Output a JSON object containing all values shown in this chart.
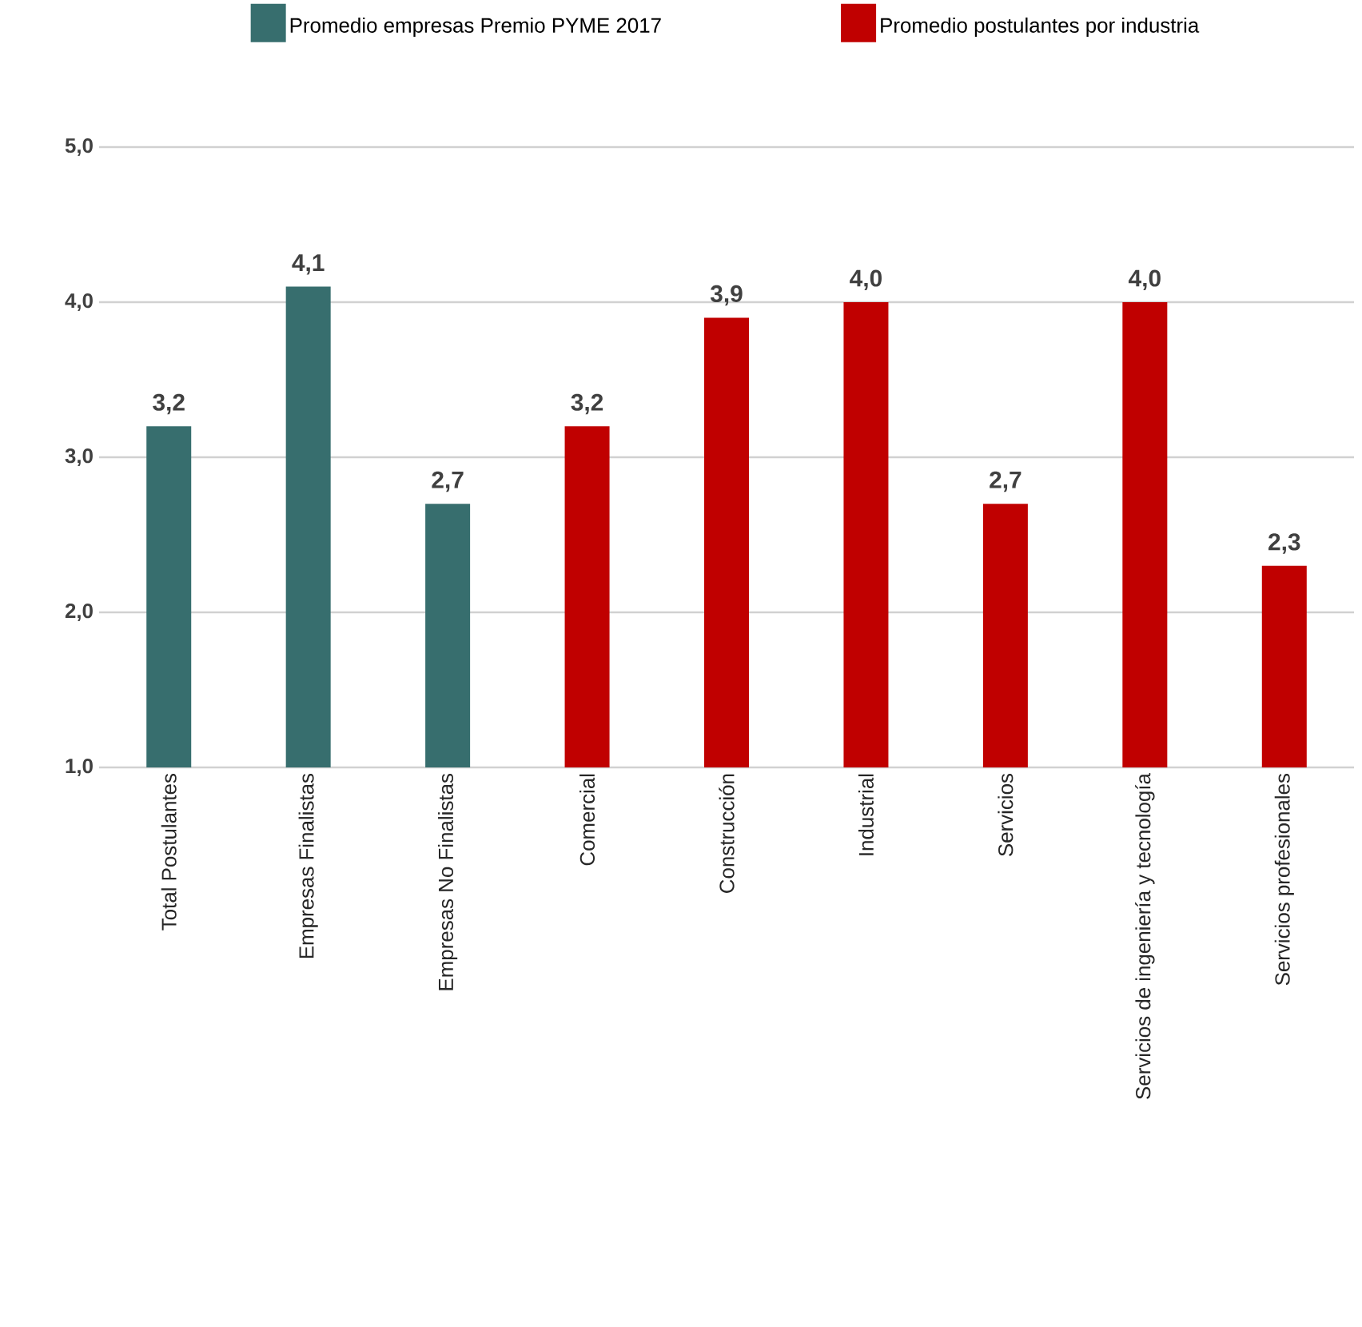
{
  "chart_data": {
    "type": "bar",
    "categories": [
      "Total Postulantes",
      "Empresas Finalistas",
      "Empresas No Finalistas",
      "Comercial",
      "Construcción",
      "Industrial",
      "Servicios",
      "Servicios de ingeniería y tecnología",
      "Servicios profesionales"
    ],
    "series": [
      {
        "name": "Promedio empresas Premio PYME 2017",
        "color": "#376e6e",
        "values": [
          3.2,
          4.1,
          2.7,
          null,
          null,
          null,
          null,
          null,
          null
        ],
        "value_labels": [
          "3,2",
          "4,1",
          "2,7",
          null,
          null,
          null,
          null,
          null,
          null
        ]
      },
      {
        "name": "Promedio postulantes por industria",
        "color": "#c00000",
        "values": [
          null,
          null,
          null,
          3.2,
          3.9,
          4.0,
          2.7,
          4.0,
          2.3
        ],
        "value_labels": [
          null,
          null,
          null,
          "3,2",
          "3,9",
          "4,0",
          "2,7",
          "4,0",
          "2,3"
        ]
      }
    ],
    "ylim": [
      1,
      5
    ],
    "yticks": [
      {
        "value": 1,
        "label": "1,0"
      },
      {
        "value": 2,
        "label": "2,0"
      },
      {
        "value": 3,
        "label": "3,0"
      },
      {
        "value": 4,
        "label": "4,0"
      },
      {
        "value": 5,
        "label": "5,0"
      }
    ],
    "grid": "y",
    "legend": "top"
  }
}
